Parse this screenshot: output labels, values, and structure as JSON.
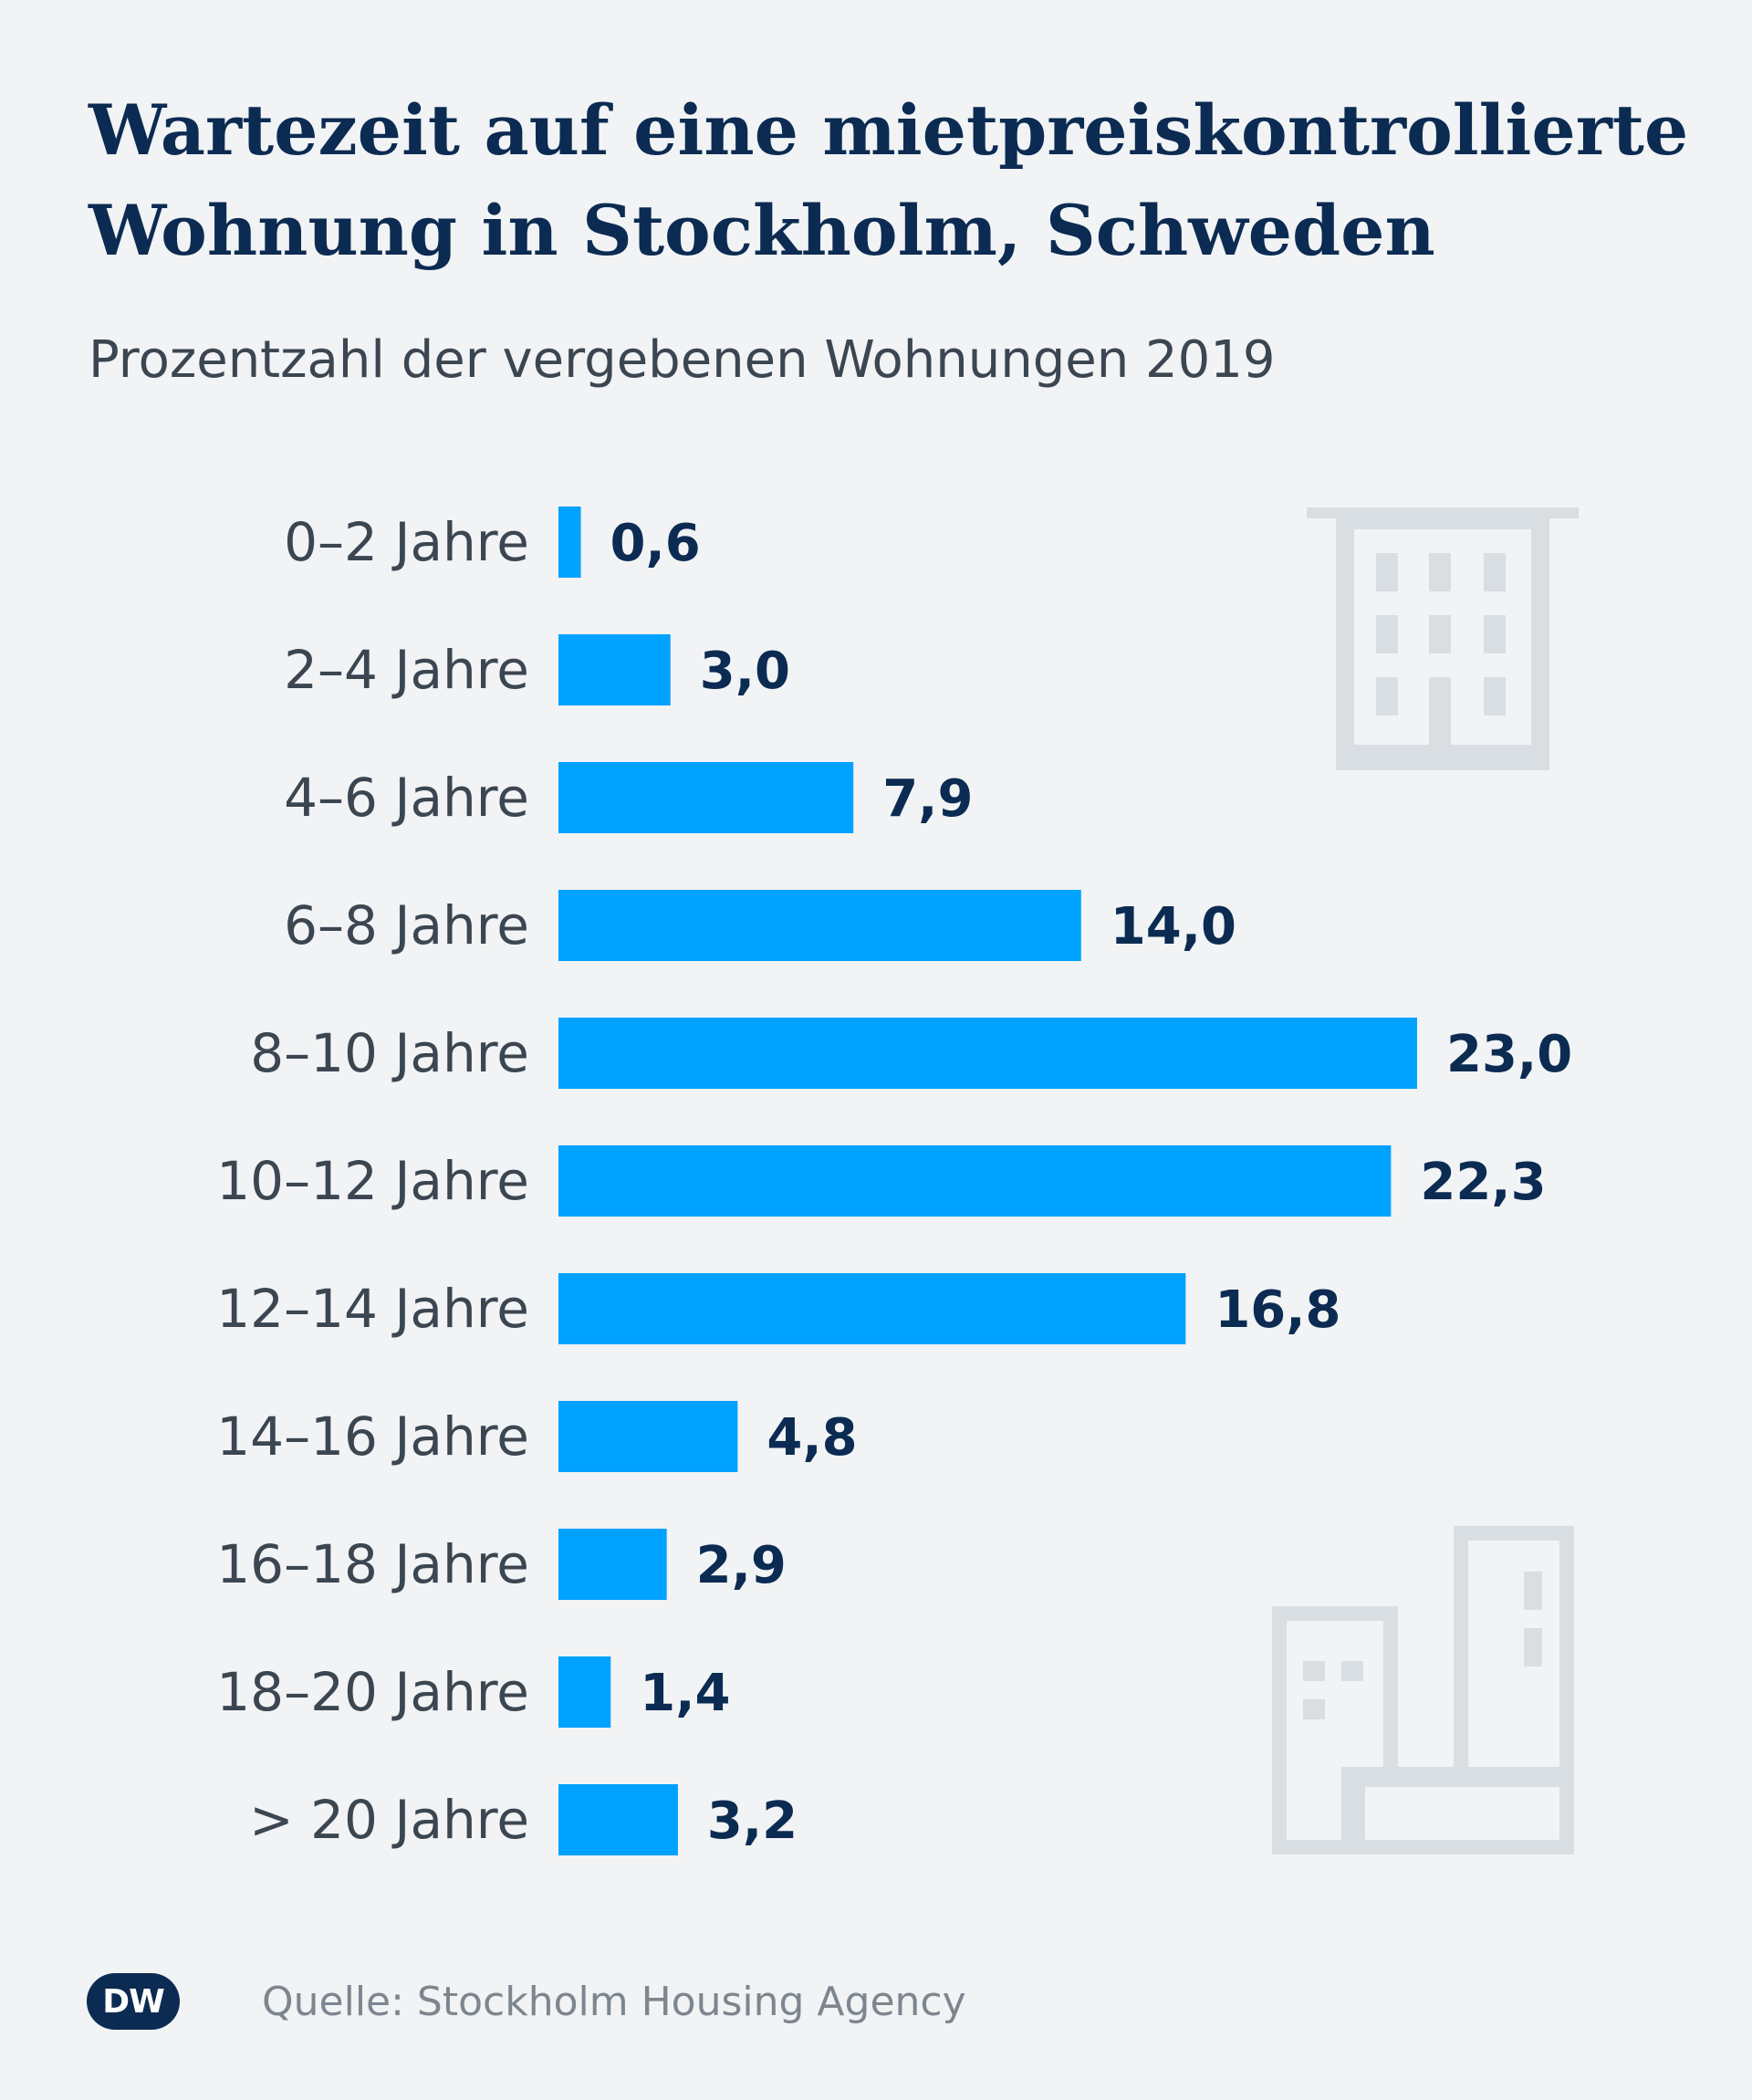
{
  "title": "Wartezeit auf eine mietpreiskontrollierte Wohnung in Stockholm, Schweden",
  "subtitle": "Prozentzahl der vergebenen Wohnungen 2019",
  "source": "Quelle: Stockholm Housing Agency",
  "logo_text": "DW",
  "colors": {
    "bar": "#00a2ff",
    "title": "#0c2b52",
    "background": "#f1f3f5",
    "icon": "#d9dee3"
  },
  "icons": [
    "building-icon",
    "buildings-icon"
  ],
  "chart_data": {
    "type": "bar",
    "orientation": "horizontal",
    "title": "Wartezeit auf eine mietpreiskontrollierte Wohnung in Stockholm, Schweden",
    "subtitle": "Prozentzahl der vergebenen Wohnungen 2019",
    "categories": [
      "0–2 Jahre",
      "2–4 Jahre",
      "4–6 Jahre",
      "6–8 Jahre",
      "8–10 Jahre",
      "10–12 Jahre",
      "12–14 Jahre",
      "14–16 Jahre",
      "16–18 Jahre",
      "18–20 Jahre",
      "> 20 Jahre"
    ],
    "values": [
      0.6,
      3.0,
      7.9,
      14.0,
      23.0,
      22.3,
      16.8,
      4.8,
      2.9,
      1.4,
      3.2
    ],
    "value_labels": [
      "0,6",
      "3,0",
      "7,9",
      "14,0",
      "23,0",
      "22,3",
      "16,8",
      "4,8",
      "2,9",
      "1,4",
      "3,2"
    ],
    "xlabel": "",
    "ylabel": "",
    "xlim": [
      0,
      23
    ],
    "grid": false
  }
}
